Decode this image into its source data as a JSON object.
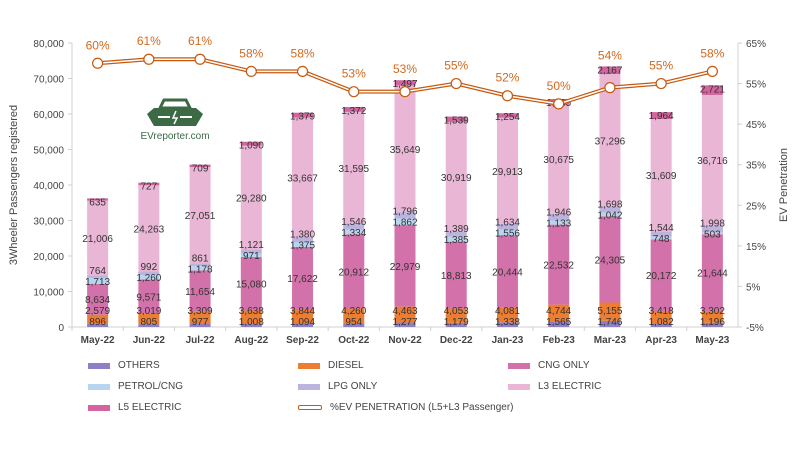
{
  "chart_data": {
    "type": "bar",
    "stacked": true,
    "categories": [
      "May-22",
      "Jun-22",
      "Jul-22",
      "Aug-22",
      "Sep-22",
      "Oct-22",
      "Nov-22",
      "Dec-22",
      "Jan-23",
      "Feb-23",
      "Mar-23",
      "Apr-23",
      "May-23"
    ],
    "ylabel": "3Wheeler Passengers registered",
    "y2label": "EV Penetration",
    "ylim": [
      0,
      80000
    ],
    "yticks": [
      "0",
      "10,000",
      "20,000",
      "30,000",
      "40,000",
      "50,000",
      "60,000",
      "70,000",
      "80,000"
    ],
    "y2lim": [
      -5,
      65
    ],
    "y2ticks": [
      "-5%",
      "5%",
      "15%",
      "25%",
      "35%",
      "45%",
      "55%",
      "65%"
    ],
    "legend_position": "bottom",
    "series": [
      {
        "name": "OTHERS",
        "color": "#8f7fc4",
        "values": [
          896,
          805,
          977,
          1008,
          1094,
          954,
          1277,
          1179,
          1338,
          1565,
          1746,
          1082,
          1196
        ]
      },
      {
        "name": "DIESEL",
        "color": "#ed7d31",
        "values": [
          2579,
          3019,
          3309,
          3638,
          3844,
          4260,
          4463,
          4053,
          4081,
          4744,
          5155,
          3418,
          3302
        ]
      },
      {
        "name": "CNG ONLY",
        "color": "#d372aa",
        "values": [
          8634,
          9571,
          11654,
          15080,
          17622,
          20912,
          22979,
          18813,
          20444,
          22532,
          24305,
          20172,
          21644
        ]
      },
      {
        "name": "PETROL/CNG",
        "color": "#b7d5ee",
        "values": [
          1713,
          1260,
          1178,
          971,
          1375,
          1334,
          1862,
          1385,
          1556,
          1133,
          1042,
          748,
          503
        ]
      },
      {
        "name": "LPG ONLY",
        "color": "#bcb3de",
        "values": [
          764,
          992,
          861,
          1121,
          1380,
          1546,
          1796,
          1389,
          1634,
          1946,
          1698,
          1544,
          1998
        ]
      },
      {
        "name": "L3 ELECTRIC",
        "color": "#eab6d5",
        "values": [
          21006,
          24263,
          27051,
          29280,
          33667,
          31595,
          35649,
          30919,
          29913,
          30675,
          37296,
          31609,
          36716
        ]
      },
      {
        "name": "L5 ELECTRIC",
        "color": "#d4649f",
        "values": [
          635,
          727,
          709,
          1090,
          1379,
          1372,
          1497,
          1539,
          1254,
          1635,
          2167,
          1964,
          2721
        ]
      }
    ],
    "line": {
      "name": "%EV PENETRATION (L5+L3 Passenger)",
      "color": "#c55a11",
      "axis": "secondary",
      "values": [
        60,
        61,
        61,
        58,
        58,
        53,
        53,
        55,
        52,
        50,
        54,
        55,
        58
      ],
      "labels": [
        "60%",
        "61%",
        "61%",
        "58%",
        "58%",
        "53%",
        "53%",
        "55%",
        "52%",
        "50%",
        "54%",
        "55%",
        "58%"
      ]
    }
  },
  "logo": {
    "text": "EVreporter.com",
    "color": "#3b6a45"
  }
}
